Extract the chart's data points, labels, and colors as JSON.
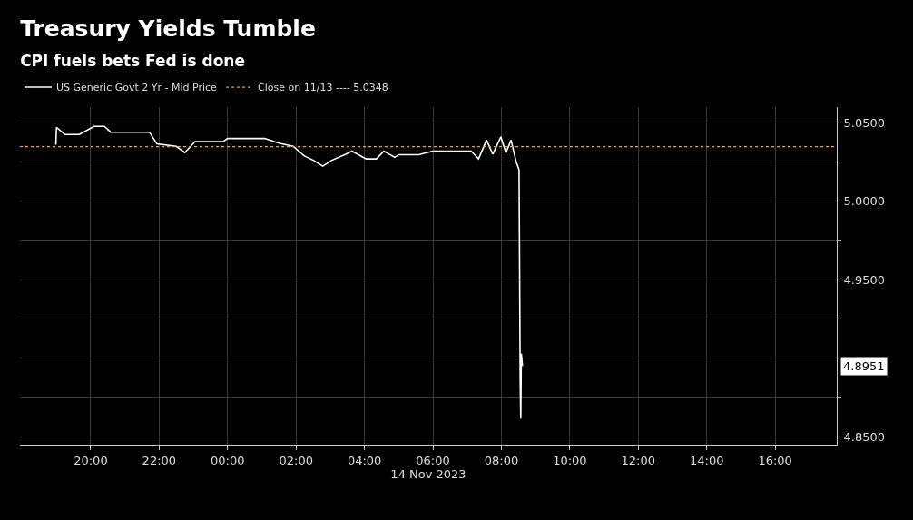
{
  "chart_data": {
    "type": "line",
    "title": "Treasury Yields Tumble",
    "subtitle": "CPI fuels bets Fed is done",
    "xlabel": "14 Nov 2023",
    "x": [
      "2023-11-13T18:59",
      "2023-11-13T19:00",
      "2023-11-13T19:15",
      "2023-11-13T19:40",
      "2023-11-13T20:06",
      "2023-11-13T20:24",
      "2023-11-13T20:35",
      "2023-11-13T21:43",
      "2023-11-13T21:56",
      "2023-11-13T22:30",
      "2023-11-13T22:45",
      "2023-11-13T23:03",
      "2023-11-13T23:52",
      "2023-11-14T00:00",
      "2023-11-14T01:05",
      "2023-11-14T01:30",
      "2023-11-14T01:55",
      "2023-11-14T02:14",
      "2023-11-14T02:31",
      "2023-11-14T02:47",
      "2023-11-14T03:02",
      "2023-11-14T03:27",
      "2023-11-14T03:38",
      "2023-11-14T04:03",
      "2023-11-14T04:21",
      "2023-11-14T04:34",
      "2023-11-14T04:53",
      "2023-11-14T05:00",
      "2023-11-14T05:35",
      "2023-11-14T06:00",
      "2023-11-14T07:07",
      "2023-11-14T07:20",
      "2023-11-14T07:34",
      "2023-11-14T07:45",
      "2023-11-14T07:59",
      "2023-11-14T08:08",
      "2023-11-14T08:17",
      "2023-11-14T08:26",
      "2023-11-14T08:31",
      "2023-11-14T08:33",
      "2023-11-14T08:34",
      "2023-11-14T08:35",
      "2023-11-14T08:37"
    ],
    "series": [
      {
        "name": "US Generic Govt 2 Yr - Mid Price",
        "color": "#ffffff",
        "values": [
          5.036,
          5.047,
          5.0425,
          5.0425,
          5.0477,
          5.0477,
          5.044,
          5.044,
          5.0366,
          5.035,
          5.031,
          5.038,
          5.038,
          5.04,
          5.04,
          5.037,
          5.035,
          5.029,
          5.026,
          5.0224,
          5.026,
          5.03,
          5.032,
          5.027,
          5.027,
          5.032,
          5.028,
          5.0297,
          5.0297,
          5.032,
          5.032,
          5.027,
          5.039,
          5.03,
          5.041,
          5.031,
          5.039,
          5.025,
          5.02,
          4.885,
          4.8616,
          4.903,
          4.8951
        ]
      }
    ],
    "ref_lines": [
      {
        "axis": "y",
        "value": 5.0348,
        "label": "Close on 11/13 ---- 5.0348",
        "color": "#e8a33d",
        "line_style": "dotted"
      }
    ],
    "annotations": [
      "4.8951"
    ],
    "xlim": [
      "2023-11-13T17:56",
      "2023-11-14T17:48"
    ],
    "xticks": [
      {
        "value": "2023-11-13T20:00",
        "label": "20:00"
      },
      {
        "value": "2023-11-13T22:00",
        "label": "22:00"
      },
      {
        "value": "2023-11-14T00:00",
        "label": "00:00"
      },
      {
        "value": "2023-11-14T02:00",
        "label": "02:00"
      },
      {
        "value": "2023-11-14T04:00",
        "label": "04:00"
      },
      {
        "value": "2023-11-14T06:00",
        "label": "06:00"
      },
      {
        "value": "2023-11-14T08:00",
        "label": "08:00"
      },
      {
        "value": "2023-11-14T10:00",
        "label": "10:00"
      },
      {
        "value": "2023-11-14T12:00",
        "label": "12:00"
      },
      {
        "value": "2023-11-14T14:00",
        "label": "14:00"
      },
      {
        "value": "2023-11-14T16:00",
        "label": "16:00"
      }
    ],
    "ylim": [
      4.845,
      5.06
    ],
    "yticks": [
      {
        "value": 4.85,
        "label": "4.8500"
      },
      {
        "value": 4.875,
        "label": null
      },
      {
        "value": 4.9,
        "label": null
      },
      {
        "value": 4.925,
        "label": null
      },
      {
        "value": 4.95,
        "label": "4.9500"
      },
      {
        "value": 4.975,
        "label": null
      },
      {
        "value": 5.0,
        "label": "5.0000"
      },
      {
        "value": 5.025,
        "label": null
      },
      {
        "value": 5.05,
        "label": "5.0500"
      }
    ],
    "grid": true,
    "legend": "top left",
    "marker": "none",
    "line_style": "solid"
  }
}
